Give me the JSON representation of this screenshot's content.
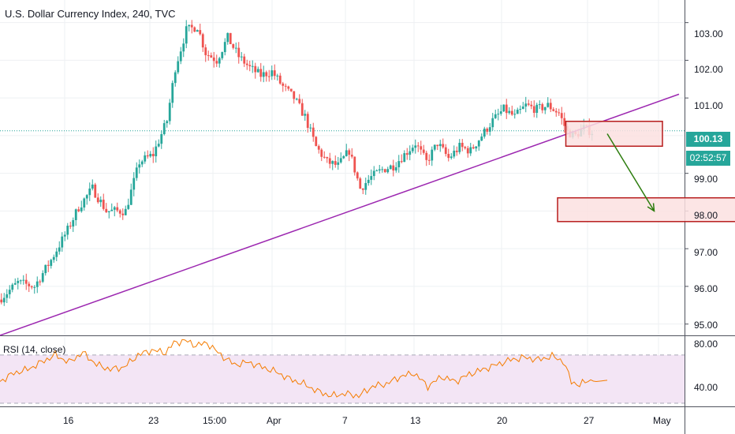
{
  "header": {
    "title": "U.S. Dollar Currency Index, 240, TVC",
    "rsi_title": "RSI (14, close)"
  },
  "price_axis": {
    "labels": [
      "103.00",
      "102.00",
      "101.00",
      "99.00",
      "98.00",
      "97.00",
      "96.00",
      "95.00"
    ],
    "current_price": "100.13",
    "countdown": "02:52:57"
  },
  "rsi_axis": {
    "labels": [
      "80.00",
      "40.00"
    ]
  },
  "time_axis": {
    "labels": [
      "16",
      "23",
      "15:00",
      "Apr",
      "7",
      "13",
      "20",
      "27",
      "May"
    ]
  },
  "colors": {
    "up": "#26a69a",
    "down": "#ef5350",
    "trendline": "#9c27b0",
    "arrow": "#2e7d0f",
    "zone_border": "#b71c1c",
    "zone_fill": "#fbe1e0",
    "rsi_line": "#f57c00",
    "rsi_band": "#f3e5f5",
    "price_line": "#26a69a"
  },
  "chart_data": {
    "type": "candlestick",
    "symbol": "U.S. Dollar Currency Index",
    "interval": "240",
    "ylim": [
      94.7,
      103.6
    ],
    "current_price": 100.13,
    "close_path": [
      {
        "i": 0,
        "v": 95.7
      },
      {
        "i": 6,
        "v": 96.1
      },
      {
        "i": 12,
        "v": 96.0
      },
      {
        "i": 18,
        "v": 96.7
      },
      {
        "i": 24,
        "v": 97.5
      },
      {
        "i": 28,
        "v": 98.1
      },
      {
        "i": 33,
        "v": 98.6
      },
      {
        "i": 38,
        "v": 98.0
      },
      {
        "i": 45,
        "v": 98.0
      },
      {
        "i": 50,
        "v": 99.3
      },
      {
        "i": 55,
        "v": 99.5
      },
      {
        "i": 60,
        "v": 100.4
      },
      {
        "i": 63,
        "v": 101.8
      },
      {
        "i": 67,
        "v": 102.8
      },
      {
        "i": 71,
        "v": 102.9
      },
      {
        "i": 74,
        "v": 102.2
      },
      {
        "i": 78,
        "v": 102.0
      },
      {
        "i": 82,
        "v": 102.6
      },
      {
        "i": 86,
        "v": 102.1
      },
      {
        "i": 90,
        "v": 101.8
      },
      {
        "i": 94,
        "v": 101.6
      },
      {
        "i": 98,
        "v": 101.7
      },
      {
        "i": 102,
        "v": 101.3
      },
      {
        "i": 106,
        "v": 101.0
      },
      {
        "i": 110,
        "v": 100.5
      },
      {
        "i": 114,
        "v": 99.7
      },
      {
        "i": 118,
        "v": 99.3
      },
      {
        "i": 122,
        "v": 99.2
      },
      {
        "i": 126,
        "v": 99.6
      },
      {
        "i": 130,
        "v": 98.6
      },
      {
        "i": 134,
        "v": 98.9
      },
      {
        "i": 138,
        "v": 99.1
      },
      {
        "i": 142,
        "v": 99.2
      },
      {
        "i": 146,
        "v": 99.5
      },
      {
        "i": 150,
        "v": 99.8
      },
      {
        "i": 154,
        "v": 99.3
      },
      {
        "i": 158,
        "v": 99.8
      },
      {
        "i": 162,
        "v": 99.4
      },
      {
        "i": 166,
        "v": 99.7
      },
      {
        "i": 170,
        "v": 99.6
      },
      {
        "i": 174,
        "v": 100.0
      },
      {
        "i": 178,
        "v": 100.4
      },
      {
        "i": 182,
        "v": 100.7
      },
      {
        "i": 186,
        "v": 100.5
      },
      {
        "i": 190,
        "v": 100.8
      },
      {
        "i": 194,
        "v": 100.7
      },
      {
        "i": 198,
        "v": 100.8
      },
      {
        "i": 202,
        "v": 100.6
      },
      {
        "i": 205,
        "v": 100.1
      },
      {
        "i": 208,
        "v": 100.0
      },
      {
        "i": 211,
        "v": 100.2
      },
      {
        "i": 214,
        "v": 100.1
      }
    ],
    "trendline": [
      {
        "i": 0,
        "v": 94.7
      },
      {
        "i": 246,
        "v": 101.1
      }
    ],
    "zones": [
      {
        "i0": 205,
        "i1": 240,
        "top": 100.38,
        "bottom": 99.72
      },
      {
        "i0": 202,
        "i1": 282,
        "top": 98.35,
        "bottom": 97.72
      }
    ],
    "arrow": {
      "from": {
        "i": 220,
        "v": 100.05
      },
      "to": {
        "i": 237,
        "v": 98.0
      }
    },
    "rsi": {
      "name": "RSI (14, close)",
      "ylim": [
        28,
        85
      ],
      "levels": [
        70,
        30
      ],
      "path": [
        {
          "i": 0,
          "v": 48
        },
        {
          "i": 5,
          "v": 55
        },
        {
          "i": 10,
          "v": 58
        },
        {
          "i": 15,
          "v": 64
        },
        {
          "i": 20,
          "v": 70
        },
        {
          "i": 25,
          "v": 64
        },
        {
          "i": 30,
          "v": 72
        },
        {
          "i": 35,
          "v": 62
        },
        {
          "i": 40,
          "v": 58
        },
        {
          "i": 45,
          "v": 60
        },
        {
          "i": 50,
          "v": 70
        },
        {
          "i": 55,
          "v": 74
        },
        {
          "i": 60,
          "v": 72
        },
        {
          "i": 63,
          "v": 80
        },
        {
          "i": 67,
          "v": 82
        },
        {
          "i": 71,
          "v": 78
        },
        {
          "i": 75,
          "v": 80
        },
        {
          "i": 80,
          "v": 70
        },
        {
          "i": 85,
          "v": 62
        },
        {
          "i": 90,
          "v": 64
        },
        {
          "i": 95,
          "v": 60
        },
        {
          "i": 100,
          "v": 56
        },
        {
          "i": 105,
          "v": 50
        },
        {
          "i": 110,
          "v": 46
        },
        {
          "i": 115,
          "v": 40
        },
        {
          "i": 120,
          "v": 36
        },
        {
          "i": 125,
          "v": 38
        },
        {
          "i": 130,
          "v": 36
        },
        {
          "i": 135,
          "v": 44
        },
        {
          "i": 140,
          "v": 46
        },
        {
          "i": 145,
          "v": 52
        },
        {
          "i": 150,
          "v": 55
        },
        {
          "i": 155,
          "v": 44
        },
        {
          "i": 160,
          "v": 52
        },
        {
          "i": 165,
          "v": 48
        },
        {
          "i": 170,
          "v": 54
        },
        {
          "i": 175,
          "v": 58
        },
        {
          "i": 180,
          "v": 62
        },
        {
          "i": 185,
          "v": 66
        },
        {
          "i": 190,
          "v": 68
        },
        {
          "i": 195,
          "v": 66
        },
        {
          "i": 200,
          "v": 69
        },
        {
          "i": 204,
          "v": 65
        },
        {
          "i": 207,
          "v": 48
        },
        {
          "i": 210,
          "v": 45
        },
        {
          "i": 213,
          "v": 49
        },
        {
          "i": 216,
          "v": 48
        },
        {
          "i": 220,
          "v": 49
        }
      ]
    }
  }
}
